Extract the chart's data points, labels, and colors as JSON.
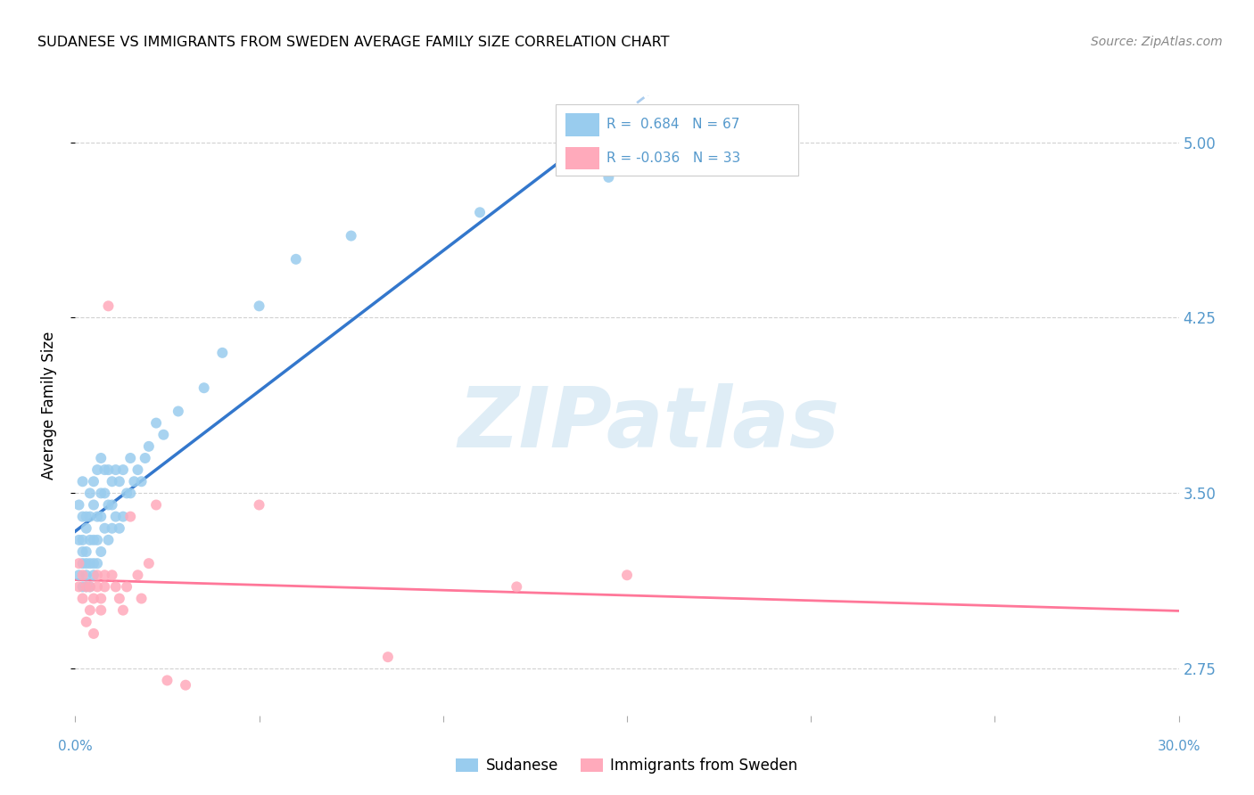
{
  "title": "SUDANESE VS IMMIGRANTS FROM SWEDEN AVERAGE FAMILY SIZE CORRELATION CHART",
  "source": "Source: ZipAtlas.com",
  "ylabel": "Average Family Size",
  "yticks": [
    2.75,
    3.5,
    4.25,
    5.0
  ],
  "ytick_color": "#5599cc",
  "background_color": "#ffffff",
  "grid_color": "#cccccc",
  "watermark": "ZIPatlas",
  "sudanese_color": "#99ccee",
  "immigrants_color": "#ffaabb",
  "trendline_blue_color": "#3377cc",
  "trendline_pink_color": "#ff7799",
  "trendline_dashed_color": "#aaccee",
  "R_sudanese": 0.684,
  "N_sudanese": 67,
  "R_immigrants": -0.036,
  "N_immigrants": 33,
  "sudanese_x": [
    0.001,
    0.001,
    0.001,
    0.002,
    0.002,
    0.002,
    0.002,
    0.002,
    0.002,
    0.003,
    0.003,
    0.003,
    0.003,
    0.003,
    0.003,
    0.004,
    0.004,
    0.004,
    0.004,
    0.004,
    0.005,
    0.005,
    0.005,
    0.005,
    0.005,
    0.006,
    0.006,
    0.006,
    0.006,
    0.007,
    0.007,
    0.007,
    0.007,
    0.008,
    0.008,
    0.008,
    0.009,
    0.009,
    0.009,
    0.01,
    0.01,
    0.01,
    0.011,
    0.011,
    0.012,
    0.012,
    0.013,
    0.013,
    0.014,
    0.015,
    0.015,
    0.016,
    0.017,
    0.018,
    0.019,
    0.02,
    0.022,
    0.024,
    0.028,
    0.035,
    0.04,
    0.05,
    0.06,
    0.075,
    0.11,
    0.145,
    0.175
  ],
  "sudanese_y": [
    3.15,
    3.3,
    3.45,
    3.1,
    3.2,
    3.25,
    3.3,
    3.4,
    3.55,
    3.1,
    3.15,
    3.2,
    3.25,
    3.35,
    3.4,
    3.1,
    3.2,
    3.3,
    3.4,
    3.5,
    3.15,
    3.2,
    3.3,
    3.45,
    3.55,
    3.2,
    3.3,
    3.4,
    3.6,
    3.25,
    3.4,
    3.5,
    3.65,
    3.35,
    3.5,
    3.6,
    3.3,
    3.45,
    3.6,
    3.35,
    3.45,
    3.55,
    3.4,
    3.6,
    3.35,
    3.55,
    3.4,
    3.6,
    3.5,
    3.5,
    3.65,
    3.55,
    3.6,
    3.55,
    3.65,
    3.7,
    3.8,
    3.75,
    3.85,
    3.95,
    4.1,
    4.3,
    4.5,
    4.6,
    4.7,
    4.85,
    5.0
  ],
  "immigrants_x": [
    0.001,
    0.001,
    0.002,
    0.002,
    0.003,
    0.003,
    0.004,
    0.004,
    0.005,
    0.005,
    0.006,
    0.006,
    0.007,
    0.007,
    0.008,
    0.008,
    0.009,
    0.01,
    0.011,
    0.012,
    0.013,
    0.014,
    0.015,
    0.017,
    0.018,
    0.02,
    0.022,
    0.025,
    0.03,
    0.05,
    0.085,
    0.12,
    0.15
  ],
  "immigrants_y": [
    3.1,
    3.2,
    3.05,
    3.15,
    2.95,
    3.1,
    3.0,
    3.1,
    2.9,
    3.05,
    3.15,
    3.1,
    3.0,
    3.05,
    3.1,
    3.15,
    4.3,
    3.15,
    3.1,
    3.05,
    3.0,
    3.1,
    3.4,
    3.15,
    3.05,
    3.2,
    3.45,
    2.7,
    2.68,
    3.45,
    2.8,
    3.1,
    3.15
  ],
  "xmin": 0.0,
  "xmax": 0.3,
  "ymin": 2.55,
  "ymax": 5.2,
  "legend_blue_label": "Sudanese",
  "legend_pink_label": "Immigrants from Sweden",
  "trendline_solid_end": 0.14,
  "trendline_dash_start": 0.13
}
